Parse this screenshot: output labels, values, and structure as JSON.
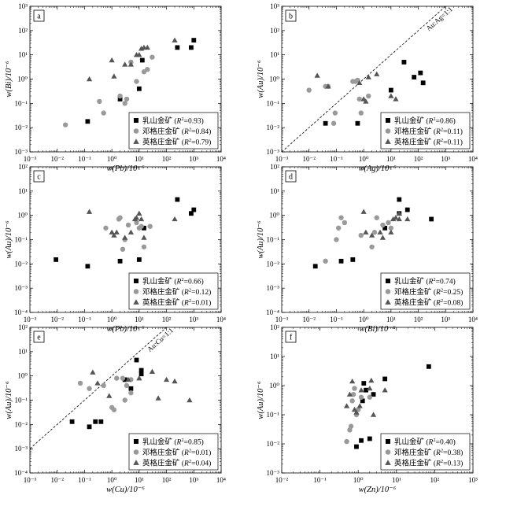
{
  "chart_data": [
    {
      "type": "scatter",
      "panel_label": "a",
      "xlabel": "w(Pb)/10⁻⁶",
      "ylabel": "w(Bi)/10⁻⁶",
      "xscale": "log",
      "yscale": "log",
      "xlim": [
        0.001,
        10000
      ],
      "ylim": [
        0.001,
        1000
      ],
      "xticks": [
        "10⁻³",
        "10⁻²",
        "10⁻¹",
        "10⁰",
        "10¹",
        "10²",
        "10³",
        "10⁴"
      ],
      "yticks": [
        "10⁻³",
        "10⁻²",
        "10⁻¹",
        "10⁰",
        "10¹",
        "10²",
        "10³"
      ],
      "legend_position": "bottom-right",
      "series": [
        {
          "name": "乳山金矿",
          "r2": "0.93",
          "marker": "square",
          "color": "#000000",
          "x": [
            0.13,
            2,
            10,
            13,
            250,
            800,
            1000
          ],
          "y": [
            0.018,
            0.15,
            0.4,
            6,
            20,
            20,
            40
          ]
        },
        {
          "name": "邓格庄金矿",
          "r2": "0.84",
          "marker": "circle",
          "color": "#9a9a9a",
          "x": [
            0.02,
            0.35,
            0.5,
            2,
            3,
            3.5,
            5,
            8,
            15,
            20,
            30
          ],
          "y": [
            0.013,
            0.12,
            0.04,
            0.2,
            0.1,
            0.15,
            5,
            0.8,
            2,
            2.5,
            8
          ]
        },
        {
          "name": "英格庄金矿",
          "r2": "0.79",
          "marker": "triangle",
          "color": "#555555",
          "x": [
            0.15,
            1,
            1.2,
            3,
            5,
            8,
            10,
            12,
            15,
            20,
            200
          ],
          "y": [
            1,
            6,
            1.3,
            4,
            4,
            10,
            10,
            18,
            20,
            20,
            40
          ]
        }
      ]
    },
    {
      "type": "scatter",
      "panel_label": "b",
      "xlabel": "w(Ag)/10⁻⁶",
      "ylabel": "w(Au)/10⁻⁶",
      "xscale": "log",
      "yscale": "log",
      "xlim": [
        0.001,
        10000
      ],
      "ylim": [
        0.001,
        1000
      ],
      "xticks": [
        "10⁻³",
        "10⁻²",
        "10⁻¹",
        "10⁰",
        "10¹",
        "10²",
        "10³",
        "10⁴"
      ],
      "yticks": [
        "10⁻³",
        "10⁻²",
        "10⁻¹",
        "10⁰",
        "10¹",
        "10²",
        "10³"
      ],
      "legend_position": "bottom-right",
      "reference_line": {
        "label": "Au:Ag=1:1",
        "from": [
          0.001,
          0.001
        ],
        "to": [
          1000,
          1000
        ]
      },
      "series": [
        {
          "name": "乳山金矿",
          "r2": "0.86",
          "marker": "square",
          "color": "#000000",
          "x": [
            0.04,
            0.6,
            10,
            30,
            70,
            120,
            150
          ],
          "y": [
            0.015,
            0.015,
            0.35,
            5,
            1.2,
            1.8,
            0.7
          ]
        },
        {
          "name": "邓格庄金矿",
          "r2": "0.11",
          "marker": "circle",
          "color": "#9a9a9a",
          "x": [
            0.01,
            0.04,
            0.05,
            0.08,
            0.09,
            0.4,
            0.5,
            0.6,
            0.7,
            0.8,
            1.5
          ],
          "y": [
            0.35,
            0.5,
            0.5,
            0.015,
            0.04,
            0.8,
            0.8,
            0.9,
            0.15,
            0.04,
            0.2
          ]
        },
        {
          "name": "英格庄金矿",
          "r2": "0.11",
          "marker": "triangle",
          "color": "#555555",
          "x": [
            0.02,
            0.05,
            0.7,
            1,
            1.2,
            1.5,
            3,
            10,
            15
          ],
          "y": [
            1.4,
            0.5,
            0.7,
            0.15,
            0.12,
            1.2,
            1.6,
            0.2,
            0.15
          ]
        }
      ]
    },
    {
      "type": "scatter",
      "panel_label": "c",
      "xlabel": "w(Pb)/10⁻⁶",
      "ylabel": "w(Au)/10⁻⁶",
      "xscale": "log",
      "yscale": "log",
      "xlim": [
        0.001,
        10000
      ],
      "ylim": [
        0.0001,
        100
      ],
      "xticks": [
        "10⁻³",
        "10⁻²",
        "10⁻¹",
        "10⁰",
        "10¹",
        "10²",
        "10³",
        "10⁴"
      ],
      "yticks": [
        "10⁻⁴",
        "10⁻³",
        "10⁻²",
        "10⁻¹",
        "10⁰",
        "10¹",
        "10²"
      ],
      "legend_position": "bottom-right",
      "series": [
        {
          "name": "乳山金矿",
          "r2": "0.66",
          "marker": "square",
          "color": "#000000",
          "x": [
            0.009,
            0.13,
            2,
            10,
            15,
            250,
            800,
            1000
          ],
          "y": [
            0.015,
            0.008,
            0.013,
            0.015,
            0.3,
            4.5,
            1.2,
            1.7
          ]
        },
        {
          "name": "邓格庄金矿",
          "r2": "0.12",
          "marker": "circle",
          "color": "#9a9a9a",
          "x": [
            0.6,
            1.8,
            2,
            2.5,
            3,
            4,
            8,
            10,
            12,
            15,
            25
          ],
          "y": [
            0.3,
            0.7,
            0.8,
            0.04,
            0.1,
            0.4,
            0.5,
            0.3,
            0.35,
            0.05,
            0.35
          ]
        },
        {
          "name": "英格庄金矿",
          "r2": "0.01",
          "marker": "triangle",
          "color": "#555555",
          "x": [
            0.15,
            1,
            1.2,
            1.5,
            3,
            5,
            7,
            8,
            10,
            12,
            15,
            200
          ],
          "y": [
            1.4,
            0.2,
            0.15,
            0.2,
            0.12,
            0.2,
            0.7,
            0.8,
            1.2,
            0.7,
            0.12,
            0.7
          ]
        }
      ]
    },
    {
      "type": "scatter",
      "panel_label": "d",
      "xlabel": "w(Bi)/10⁻⁶",
      "ylabel": "w(Au)/10⁻⁶",
      "xscale": "log",
      "yscale": "log",
      "xlim": [
        0.001,
        10000
      ],
      "ylim": [
        0.0001,
        100
      ],
      "xticks": [
        "10⁻³",
        "10⁻²",
        "10⁻¹",
        "10⁰",
        "10¹",
        "10²",
        "10³",
        "10⁴"
      ],
      "yticks": [
        "10⁻⁴",
        "10⁻³",
        "10⁻²",
        "10⁻¹",
        "10⁰",
        "10¹",
        "10²"
      ],
      "legend_position": "bottom-right",
      "series": [
        {
          "name": "乳山金矿",
          "r2": "0.74",
          "marker": "square",
          "color": "#000000",
          "x": [
            0.017,
            0.15,
            0.4,
            6,
            20,
            20,
            40,
            300
          ],
          "y": [
            0.008,
            0.013,
            0.015,
            0.3,
            4.5,
            1.2,
            1.7,
            0.7
          ]
        },
        {
          "name": "邓格庄金矿",
          "r2": "0.25",
          "marker": "circle",
          "color": "#9a9a9a",
          "x": [
            0.04,
            0.1,
            0.12,
            0.15,
            0.2,
            0.8,
            2,
            2.5,
            3,
            5,
            8,
            10
          ],
          "y": [
            0.013,
            0.1,
            0.3,
            0.8,
            0.5,
            0.15,
            0.05,
            0.2,
            0.8,
            0.4,
            0.5,
            0.3
          ]
        },
        {
          "name": "英格庄金矿",
          "r2": "0.08",
          "marker": "triangle",
          "color": "#555555",
          "x": [
            1,
            1.2,
            2,
            4,
            5,
            10,
            12,
            15,
            20,
            20,
            40
          ],
          "y": [
            1.4,
            0.2,
            0.15,
            0.2,
            0.12,
            0.2,
            0.7,
            0.8,
            1.2,
            0.7,
            0.7
          ]
        }
      ]
    },
    {
      "type": "scatter",
      "panel_label": "e",
      "xlabel": "w(Cu)/10⁻⁶",
      "ylabel": "w(Au)/10⁻⁶",
      "xscale": "log",
      "yscale": "log",
      "xlim": [
        0.001,
        10000
      ],
      "ylim": [
        0.0001,
        100
      ],
      "xticks": [
        "10⁻³",
        "10⁻²",
        "10⁻¹",
        "10⁰",
        "10¹",
        "10²",
        "10³",
        "10⁴"
      ],
      "yticks": [
        "10⁻⁴",
        "10⁻³",
        "10⁻²",
        "10⁻¹",
        "10⁰",
        "10¹",
        "10²"
      ],
      "legend_position": "bottom-right",
      "reference_line": {
        "label": "Au:Cu=1:1",
        "from": [
          0.001,
          0.001
        ],
        "to": [
          100,
          100
        ]
      },
      "series": [
        {
          "name": "乳山金矿",
          "r2": "0.85",
          "marker": "square",
          "color": "#000000",
          "x": [
            0.035,
            0.15,
            0.25,
            0.4,
            3,
            5,
            8,
            12,
            12
          ],
          "y": [
            0.013,
            0.008,
            0.013,
            0.013,
            0.7,
            0.3,
            4.5,
            1.2,
            1.7
          ]
        },
        {
          "name": "邓格庄金矿",
          "r2": "0.01",
          "marker": "circle",
          "color": "#9a9a9a",
          "x": [
            0.07,
            0.15,
            0.5,
            1,
            1.2,
            1.5,
            2.5,
            3,
            3.5,
            5,
            5
          ],
          "y": [
            0.5,
            0.3,
            0.4,
            0.05,
            0.04,
            0.8,
            0.8,
            0.1,
            0.4,
            0.7,
            0.2
          ]
        },
        {
          "name": "英格庄金矿",
          "r2": "0.04",
          "marker": "triangle",
          "color": "#555555",
          "x": [
            0.2,
            0.3,
            0.8,
            4,
            10,
            30,
            50,
            100,
            200,
            700
          ],
          "y": [
            1.4,
            0.5,
            0.15,
            0.7,
            0.8,
            1.5,
            0.12,
            0.7,
            0.6,
            0.1
          ]
        }
      ]
    },
    {
      "type": "scatter",
      "panel_label": "f",
      "xlabel": "w(Zn)/10⁻⁶",
      "ylabel": "w(Au)/10⁻⁶",
      "xscale": "log",
      "yscale": "log",
      "xlim": [
        0.01,
        1000
      ],
      "ylim": [
        0.001,
        100
      ],
      "xticks": [
        "10⁻²",
        "10⁻¹",
        "10⁰",
        "10¹",
        "10²",
        "10³"
      ],
      "yticks": [
        "10⁻³",
        "10⁻²",
        "10⁻¹",
        "10⁰",
        "10¹",
        "10²"
      ],
      "legend_position": "bottom-right",
      "series": [
        {
          "name": "乳山金矿",
          "r2": "0.40",
          "marker": "square",
          "color": "#000000",
          "x": [
            0.9,
            1.2,
            1.3,
            1.4,
            1.6,
            2,
            2.5,
            5,
            70
          ],
          "y": [
            0.008,
            0.013,
            0.3,
            1.2,
            0.7,
            0.015,
            0.5,
            1.7,
            4.5
          ]
        },
        {
          "name": "邓格庄金矿",
          "r2": "0.38",
          "marker": "circle",
          "color": "#9a9a9a",
          "x": [
            0.5,
            0.6,
            0.65,
            0.7,
            0.75,
            0.8,
            0.9,
            1,
            1.2,
            2
          ],
          "y": [
            0.012,
            0.03,
            0.04,
            0.3,
            0.5,
            0.8,
            0.1,
            0.15,
            0.4,
            0.4
          ]
        },
        {
          "name": "英格庄金矿",
          "r2": "0.13",
          "marker": "triangle",
          "color": "#555555",
          "x": [
            0.5,
            0.6,
            0.7,
            0.8,
            0.9,
            1.1,
            1.2,
            2,
            2.2,
            2.5,
            5
          ],
          "y": [
            0.2,
            0.5,
            1.4,
            0.15,
            0.12,
            0.2,
            0.7,
            0.8,
            1.5,
            0.1,
            0.7
          ]
        }
      ]
    }
  ]
}
